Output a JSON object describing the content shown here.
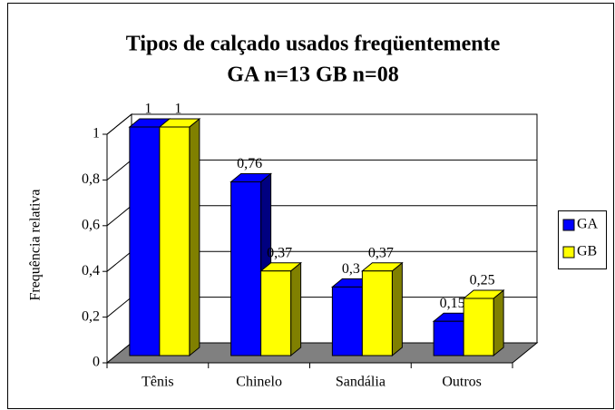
{
  "chart_data": {
    "type": "bar3d",
    "title": "Tipos de calçado usados freqüentemente",
    "subtitle": "GA n=13 GB n=08",
    "y_label": "Frequência relativa",
    "categories": [
      "Tênis",
      "Chinelo",
      "Sandália",
      "Outros"
    ],
    "series": [
      {
        "name": "GA",
        "color": "#0000ff",
        "side_color": "#000080",
        "values": [
          1,
          0.76,
          0.3,
          0.15
        ],
        "value_labels": [
          "1",
          "0,76",
          "0,3",
          "0,15"
        ]
      },
      {
        "name": "GB",
        "color": "#ffff00",
        "side_color": "#808000",
        "values": [
          1,
          0.37,
          0.37,
          0.25
        ],
        "value_labels": [
          "1",
          "0,37",
          "0,37",
          "0,25"
        ]
      }
    ],
    "ylim": [
      0,
      1
    ],
    "yticks": [
      0,
      {
        "value": 0.2,
        "label": "0,2"
      },
      {
        "value": 0.4,
        "label": "0,4"
      },
      {
        "value": 0.6,
        "label": "0,6"
      },
      {
        "value": 0.8,
        "label": "0,8"
      },
      1
    ],
    "grid": true,
    "legend": "right"
  }
}
